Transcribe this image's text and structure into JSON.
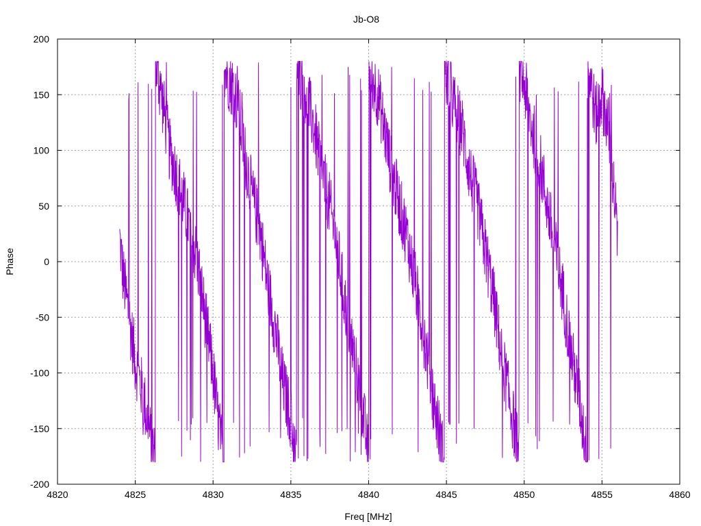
{
  "chart_data": {
    "type": "line",
    "title": "Jb-O8",
    "xlabel": "Freq [MHz]",
    "ylabel": "Phase",
    "xlim": [
      4820,
      4860
    ],
    "ylim": [
      -200,
      200
    ],
    "x_ticks": [
      4820,
      4825,
      4830,
      4835,
      4840,
      4845,
      4850,
      4855,
      4860
    ],
    "y_ticks": [
      -200,
      -150,
      -100,
      -50,
      0,
      50,
      100,
      150,
      200
    ],
    "grid": true,
    "legend": "none",
    "series_color": "#9400d3",
    "series": [
      {
        "x_start": 4824.0,
        "x_end": 4856.0,
        "wrap_period": 360,
        "description_points": [
          [
            4824.0,
            20
          ],
          [
            4824.2,
            -10
          ],
          [
            4824.5,
            -40
          ],
          [
            4825.0,
            -90
          ],
          [
            4825.5,
            -120
          ],
          [
            4826.0,
            -160
          ],
          [
            4826.2,
            -170
          ],
          [
            4826.4,
            170
          ],
          [
            4826.8,
            140
          ],
          [
            4827.2,
            100
          ],
          [
            4827.6,
            80
          ],
          [
            4828.0,
            60
          ],
          [
            4828.5,
            30
          ],
          [
            4829.0,
            0
          ],
          [
            4829.5,
            -50
          ],
          [
            4830.0,
            -100
          ],
          [
            4830.3,
            -140
          ],
          [
            4830.6,
            -170
          ],
          [
            4830.8,
            170
          ],
          [
            4831.2,
            160
          ],
          [
            4831.6,
            140
          ],
          [
            4832.0,
            100
          ],
          [
            4832.5,
            60
          ],
          [
            4833.0,
            30
          ],
          [
            4833.5,
            -20
          ],
          [
            4834.0,
            -60
          ],
          [
            4834.5,
            -110
          ],
          [
            4835.0,
            -140
          ],
          [
            4835.3,
            -175
          ],
          [
            4835.5,
            170
          ],
          [
            4836.0,
            150
          ],
          [
            4836.5,
            120
          ],
          [
            4837.0,
            80
          ],
          [
            4837.5,
            50
          ],
          [
            4838.0,
            10
          ],
          [
            4838.5,
            -40
          ],
          [
            4839.0,
            -80
          ],
          [
            4839.5,
            -120
          ],
          [
            4839.9,
            -165
          ],
          [
            4840.1,
            170
          ],
          [
            4840.6,
            150
          ],
          [
            4841.0,
            120
          ],
          [
            4841.5,
            80
          ],
          [
            4842.0,
            50
          ],
          [
            4842.5,
            20
          ],
          [
            4843.0,
            -20
          ],
          [
            4843.5,
            -60
          ],
          [
            4844.0,
            -110
          ],
          [
            4844.5,
            -150
          ],
          [
            4844.8,
            -175
          ],
          [
            4845.0,
            170
          ],
          [
            4845.5,
            140
          ],
          [
            4846.0,
            120
          ],
          [
            4846.5,
            80
          ],
          [
            4847.0,
            50
          ],
          [
            4847.5,
            10
          ],
          [
            4848.0,
            -30
          ],
          [
            4848.5,
            -80
          ],
          [
            4849.0,
            -120
          ],
          [
            4849.5,
            -160
          ],
          [
            4849.7,
            175
          ],
          [
            4850.0,
            160
          ],
          [
            4850.5,
            120
          ],
          [
            4851.0,
            90
          ],
          [
            4851.5,
            50
          ],
          [
            4852.0,
            10
          ],
          [
            4852.5,
            -30
          ],
          [
            4853.0,
            -80
          ],
          [
            4853.5,
            -120
          ],
          [
            4853.9,
            -160
          ],
          [
            4854.2,
            170
          ],
          [
            4854.6,
            130
          ],
          [
            4855.0,
            150
          ],
          [
            4855.4,
            120
          ],
          [
            4855.8,
            60
          ],
          [
            4856.0,
            20
          ]
        ]
      }
    ]
  }
}
